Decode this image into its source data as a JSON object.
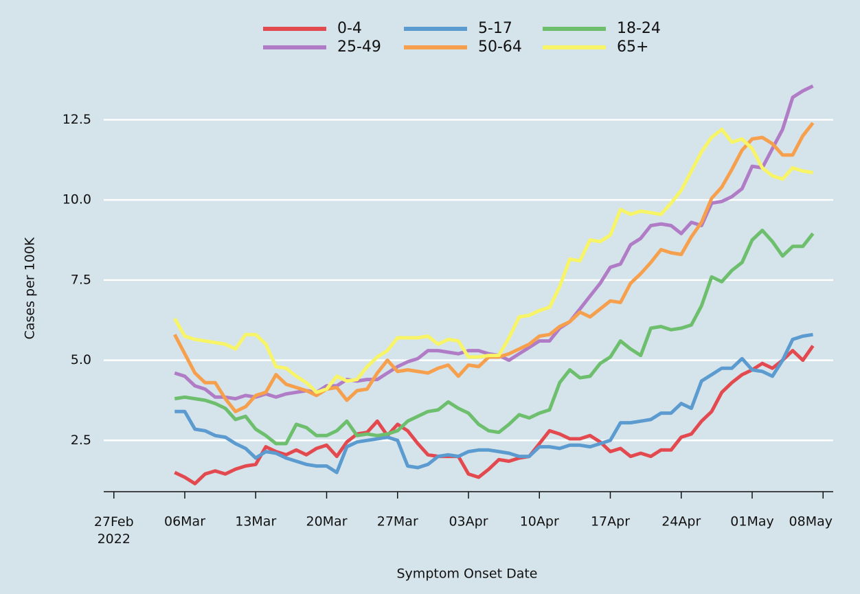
{
  "chart_data": {
    "type": "line",
    "x_label": "Symptom Onset Date",
    "y_label": "Cases per 100K",
    "x": [
      "2022-03-05",
      "2022-03-06",
      "2022-03-07",
      "2022-03-08",
      "2022-03-09",
      "2022-03-10",
      "2022-03-11",
      "2022-03-12",
      "2022-03-13",
      "2022-03-14",
      "2022-03-15",
      "2022-03-16",
      "2022-03-17",
      "2022-03-18",
      "2022-03-19",
      "2022-03-20",
      "2022-03-21",
      "2022-03-22",
      "2022-03-23",
      "2022-03-24",
      "2022-03-25",
      "2022-03-26",
      "2022-03-27",
      "2022-03-28",
      "2022-03-29",
      "2022-03-30",
      "2022-03-31",
      "2022-04-01",
      "2022-04-02",
      "2022-04-03",
      "2022-04-04",
      "2022-04-05",
      "2022-04-06",
      "2022-04-07",
      "2022-04-08",
      "2022-04-09",
      "2022-04-10",
      "2022-04-11",
      "2022-04-12",
      "2022-04-13",
      "2022-04-14",
      "2022-04-15",
      "2022-04-16",
      "2022-04-17",
      "2022-04-18",
      "2022-04-19",
      "2022-04-20",
      "2022-04-21",
      "2022-04-22",
      "2022-04-23",
      "2022-04-24",
      "2022-04-25",
      "2022-04-26",
      "2022-04-27",
      "2022-04-28",
      "2022-04-29",
      "2022-04-30",
      "2022-05-01",
      "2022-05-02",
      "2022-05-03",
      "2022-05-04",
      "2022-05-05",
      "2022-05-06",
      "2022-05-07"
    ],
    "series": [
      {
        "name": "0-4",
        "color": "#e34a4f",
        "values": [
          1.5,
          1.35,
          1.15,
          1.45,
          1.55,
          1.45,
          1.6,
          1.7,
          1.75,
          2.3,
          2.15,
          2.05,
          2.2,
          2.05,
          2.25,
          2.35,
          2.0,
          2.45,
          2.7,
          2.75,
          3.1,
          2.65,
          3.0,
          2.8,
          2.4,
          2.05,
          2.0,
          2.0,
          2.0,
          1.45,
          1.35,
          1.6,
          1.9,
          1.85,
          1.95,
          2.0,
          2.4,
          2.8,
          2.7,
          2.55,
          2.55,
          2.65,
          2.45,
          2.15,
          2.25,
          2.0,
          2.1,
          2.0,
          2.2,
          2.2,
          2.6,
          2.7,
          3.1,
          3.4,
          4.0,
          4.3,
          4.55,
          4.7,
          4.9,
          4.75,
          5.0,
          5.3,
          5.0,
          5.45
        ]
      },
      {
        "name": "5-17",
        "color": "#5b9bd0",
        "values": [
          3.4,
          3.4,
          2.85,
          2.8,
          2.65,
          2.6,
          2.4,
          2.25,
          1.95,
          2.15,
          2.1,
          1.95,
          1.85,
          1.75,
          1.7,
          1.7,
          1.5,
          2.3,
          2.45,
          2.5,
          2.55,
          2.6,
          2.5,
          1.7,
          1.65,
          1.75,
          2.0,
          2.05,
          2.0,
          2.15,
          2.2,
          2.2,
          2.15,
          2.1,
          2.0,
          2.0,
          2.3,
          2.3,
          2.25,
          2.35,
          2.35,
          2.3,
          2.4,
          2.5,
          3.05,
          3.05,
          3.1,
          3.15,
          3.35,
          3.35,
          3.65,
          3.5,
          4.35,
          4.55,
          4.75,
          4.75,
          5.05,
          4.7,
          4.65,
          4.5,
          5.0,
          5.65,
          5.75,
          5.8
        ]
      },
      {
        "name": "18-24",
        "color": "#6dbf6d",
        "values": [
          3.8,
          3.85,
          3.8,
          3.75,
          3.65,
          3.5,
          3.15,
          3.25,
          2.85,
          2.65,
          2.4,
          2.4,
          3.0,
          2.9,
          2.65,
          2.65,
          2.8,
          3.1,
          2.65,
          2.7,
          2.65,
          2.7,
          2.8,
          3.1,
          3.25,
          3.4,
          3.45,
          3.7,
          3.5,
          3.35,
          3.0,
          2.8,
          2.75,
          3.0,
          3.3,
          3.2,
          3.35,
          3.45,
          4.3,
          4.7,
          4.45,
          4.5,
          4.9,
          5.1,
          5.6,
          5.35,
          5.15,
          6.0,
          6.05,
          5.95,
          6.0,
          6.1,
          6.7,
          7.6,
          7.45,
          7.8,
          8.05,
          8.75,
          9.05,
          8.7,
          8.25,
          8.55,
          8.55,
          8.95
        ]
      },
      {
        "name": "25-49",
        "color": "#b07cc6",
        "values": [
          4.6,
          4.5,
          4.2,
          4.1,
          3.85,
          3.85,
          3.8,
          3.9,
          3.85,
          3.95,
          3.85,
          3.95,
          4.0,
          4.05,
          4.0,
          4.2,
          4.2,
          4.4,
          4.35,
          4.4,
          4.4,
          4.6,
          4.8,
          4.95,
          5.05,
          5.3,
          5.3,
          5.25,
          5.2,
          5.3,
          5.3,
          5.2,
          5.15,
          5.0,
          5.2,
          5.4,
          5.6,
          5.6,
          6.0,
          6.2,
          6.6,
          7.0,
          7.4,
          7.9,
          8.0,
          8.6,
          8.8,
          9.2,
          9.25,
          9.2,
          8.95,
          9.3,
          9.2,
          9.9,
          9.95,
          10.1,
          10.35,
          11.05,
          11.0,
          11.6,
          12.2,
          13.2,
          13.4,
          13.55
        ]
      },
      {
        "name": "50-64",
        "color": "#f6a04d",
        "values": [
          5.8,
          5.2,
          4.6,
          4.3,
          4.3,
          3.8,
          3.4,
          3.55,
          3.9,
          4.0,
          4.55,
          4.25,
          4.15,
          4.05,
          3.9,
          4.1,
          4.15,
          3.75,
          4.05,
          4.1,
          4.6,
          5.0,
          4.65,
          4.7,
          4.65,
          4.6,
          4.75,
          4.85,
          4.5,
          4.85,
          4.8,
          5.1,
          5.1,
          5.2,
          5.35,
          5.5,
          5.75,
          5.8,
          6.05,
          6.2,
          6.5,
          6.35,
          6.6,
          6.85,
          6.8,
          7.4,
          7.7,
          8.05,
          8.45,
          8.35,
          8.3,
          8.85,
          9.3,
          10.05,
          10.4,
          10.95,
          11.55,
          11.9,
          11.95,
          11.75,
          11.4,
          11.4,
          12.0,
          12.4
        ]
      },
      {
        "name": "65+",
        "color": "#f7f567",
        "values": [
          6.3,
          5.75,
          5.65,
          5.6,
          5.55,
          5.5,
          5.35,
          5.8,
          5.8,
          5.5,
          4.8,
          4.75,
          4.5,
          4.3,
          4.0,
          4.1,
          4.5,
          4.35,
          4.4,
          4.8,
          5.1,
          5.3,
          5.7,
          5.7,
          5.7,
          5.75,
          5.5,
          5.65,
          5.6,
          5.1,
          5.1,
          5.15,
          5.15,
          5.7,
          6.35,
          6.4,
          6.55,
          6.65,
          7.3,
          8.15,
          8.1,
          8.75,
          8.7,
          8.9,
          9.7,
          9.55,
          9.65,
          9.6,
          9.55,
          9.9,
          10.3,
          10.9,
          11.5,
          11.95,
          12.2,
          11.8,
          11.9,
          11.6,
          11.0,
          10.75,
          10.65,
          11.0,
          10.9,
          10.85
        ]
      }
    ],
    "xlim": [
      "2022-02-26",
      "2022-05-09"
    ],
    "xticks": [
      {
        "value": "2022-02-27",
        "label": "27Feb\n2022"
      },
      {
        "value": "2022-03-06",
        "label": "06Mar"
      },
      {
        "value": "2022-03-13",
        "label": "13Mar"
      },
      {
        "value": "2022-03-20",
        "label": "20Mar"
      },
      {
        "value": "2022-03-27",
        "label": "27Mar"
      },
      {
        "value": "2022-04-03",
        "label": "03Apr"
      },
      {
        "value": "2022-04-10",
        "label": "10Apr"
      },
      {
        "value": "2022-04-17",
        "label": "17Apr"
      },
      {
        "value": "2022-04-24",
        "label": "24Apr"
      },
      {
        "value": "2022-05-01",
        "label": "01May"
      },
      {
        "value": "2022-05-08",
        "label": "08May"
      }
    ],
    "ylim": [
      0.9,
      14.2
    ],
    "yticks": [
      {
        "value": 2.5,
        "label": "2.5"
      },
      {
        "value": 5,
        "label": "5.0"
      },
      {
        "value": 7.5,
        "label": "7.5"
      },
      {
        "value": 10,
        "label": "10.0"
      },
      {
        "value": 12.5,
        "label": "12.5"
      }
    ],
    "grid": true,
    "legend": "top"
  }
}
